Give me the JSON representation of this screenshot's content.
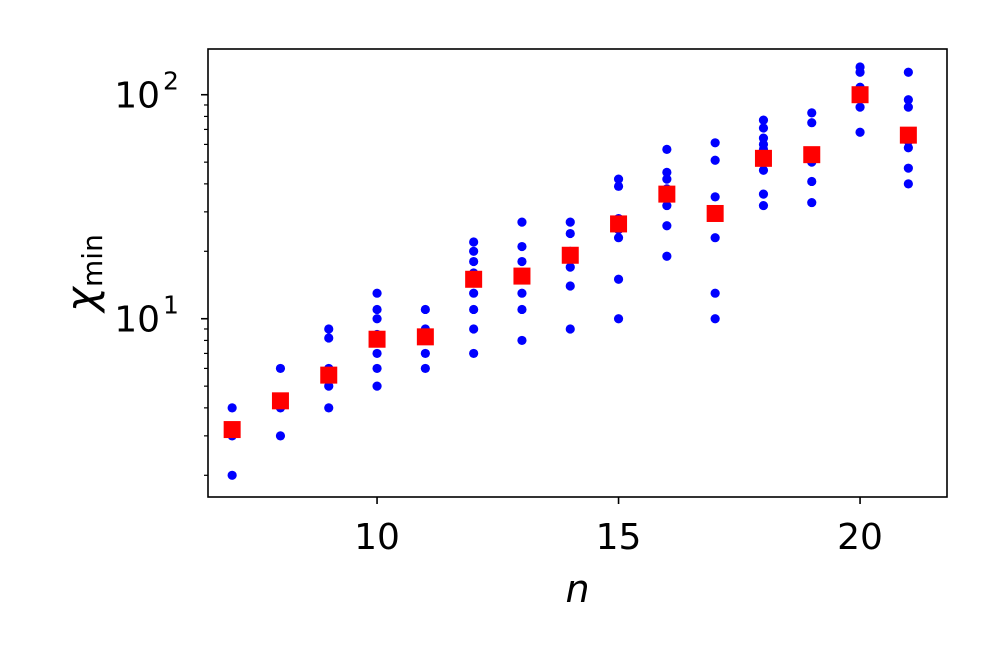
{
  "chart_data": {
    "type": "scatter",
    "xlabel": "n",
    "ylabel_main": "χ",
    "ylabel_sub": "min",
    "xlim": [
      6.5,
      21.8
    ],
    "ylim": [
      1.6,
      160
    ],
    "yscale": "log",
    "grid": false,
    "xticks": [
      {
        "value": 10,
        "label": "10"
      },
      {
        "value": 15,
        "label": "15"
      },
      {
        "value": 20,
        "label": "20"
      }
    ],
    "yticks": [
      {
        "value": 10,
        "base": "10",
        "exp": "1"
      },
      {
        "value": 100,
        "base": "10",
        "exp": "2"
      }
    ],
    "colors": {
      "samples": "#0000ff",
      "means": "#ff0000"
    },
    "series": [
      {
        "marker": "dot",
        "points": [
          [
            7,
            4
          ],
          [
            7,
            3
          ],
          [
            7,
            2
          ],
          [
            8,
            6
          ],
          [
            8,
            4
          ],
          [
            8,
            3
          ],
          [
            9,
            9
          ],
          [
            9,
            8.2
          ],
          [
            9,
            6
          ],
          [
            9,
            5
          ],
          [
            9,
            4
          ],
          [
            10,
            13
          ],
          [
            10,
            11
          ],
          [
            10,
            10
          ],
          [
            10,
            8.5
          ],
          [
            10,
            7
          ],
          [
            10,
            6
          ],
          [
            10,
            5
          ],
          [
            11,
            11
          ],
          [
            11,
            9
          ],
          [
            11,
            8
          ],
          [
            11,
            7
          ],
          [
            11,
            6
          ],
          [
            12,
            22
          ],
          [
            12,
            20
          ],
          [
            12,
            18
          ],
          [
            12,
            16
          ],
          [
            12,
            15
          ],
          [
            12,
            13
          ],
          [
            12,
            11
          ],
          [
            12,
            9
          ],
          [
            12,
            7
          ],
          [
            13,
            27
          ],
          [
            13,
            21
          ],
          [
            13,
            18
          ],
          [
            13,
            16
          ],
          [
            13,
            15
          ],
          [
            13,
            13
          ],
          [
            13,
            11
          ],
          [
            13,
            8
          ],
          [
            14,
            27
          ],
          [
            14,
            24
          ],
          [
            14,
            20
          ],
          [
            14,
            19
          ],
          [
            14,
            17
          ],
          [
            14,
            14
          ],
          [
            14,
            9
          ],
          [
            15,
            42
          ],
          [
            15,
            39
          ],
          [
            15,
            28
          ],
          [
            15,
            27
          ],
          [
            15,
            25
          ],
          [
            15,
            23
          ],
          [
            15,
            15
          ],
          [
            15,
            10
          ],
          [
            16,
            57
          ],
          [
            16,
            45
          ],
          [
            16,
            42
          ],
          [
            16,
            38
          ],
          [
            16,
            35
          ],
          [
            16,
            32
          ],
          [
            16,
            26
          ],
          [
            16,
            19
          ],
          [
            17,
            61
          ],
          [
            17,
            51
          ],
          [
            17,
            35
          ],
          [
            17,
            23
          ],
          [
            17,
            13
          ],
          [
            17,
            10
          ],
          [
            18,
            77
          ],
          [
            18,
            71
          ],
          [
            18,
            64
          ],
          [
            18,
            60
          ],
          [
            18,
            57
          ],
          [
            18,
            53
          ],
          [
            18,
            46
          ],
          [
            18,
            36
          ],
          [
            18,
            32
          ],
          [
            19,
            83
          ],
          [
            19,
            75
          ],
          [
            19,
            54
          ],
          [
            19,
            50
          ],
          [
            19,
            41
          ],
          [
            19,
            33
          ],
          [
            20,
            133
          ],
          [
            20,
            126
          ],
          [
            20,
            108
          ],
          [
            20,
            103
          ],
          [
            20,
            96
          ],
          [
            20,
            88
          ],
          [
            20,
            68
          ],
          [
            21,
            126
          ],
          [
            21,
            95
          ],
          [
            21,
            88
          ],
          [
            21,
            68
          ],
          [
            21,
            62
          ],
          [
            21,
            58
          ],
          [
            21,
            47
          ],
          [
            21,
            40
          ]
        ]
      },
      {
        "marker": "square",
        "points": [
          [
            7,
            3.2
          ],
          [
            8,
            4.3
          ],
          [
            9,
            5.6
          ],
          [
            10,
            8.1
          ],
          [
            11,
            8.3
          ],
          [
            12,
            15
          ],
          [
            13,
            15.5
          ],
          [
            14,
            19.2
          ],
          [
            15,
            26.5
          ],
          [
            16,
            36
          ],
          [
            17,
            29.5
          ],
          [
            18,
            52
          ],
          [
            19,
            54
          ],
          [
            20,
            100
          ],
          [
            21,
            66
          ]
        ]
      }
    ]
  }
}
